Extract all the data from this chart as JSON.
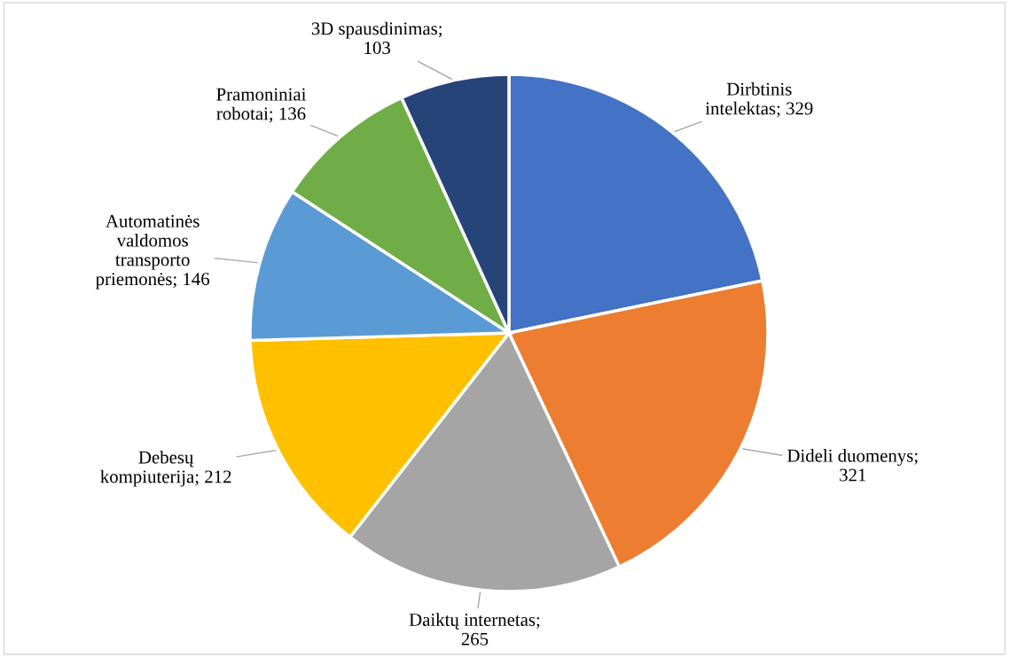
{
  "chart_data": {
    "type": "pie",
    "categories": [
      "Dirbtinis\nintelektas; 329",
      "Dideli duomenys;\n321",
      "Daiktų internetas;\n265",
      "Debesų\nkompiuterija; 212",
      "Automatinės\nvaldomos\ntransporto\npriemonės; 146",
      "Pramoniniai\nrobotai; 136",
      "3D spausdinimas;\n103"
    ],
    "values": [
      329,
      321,
      265,
      212,
      146,
      136,
      103
    ],
    "colors": [
      "#4472c4",
      "#ed7d31",
      "#a5a5a5",
      "#ffc000",
      "#5b9bd5",
      "#70ad47",
      "#264478"
    ]
  }
}
